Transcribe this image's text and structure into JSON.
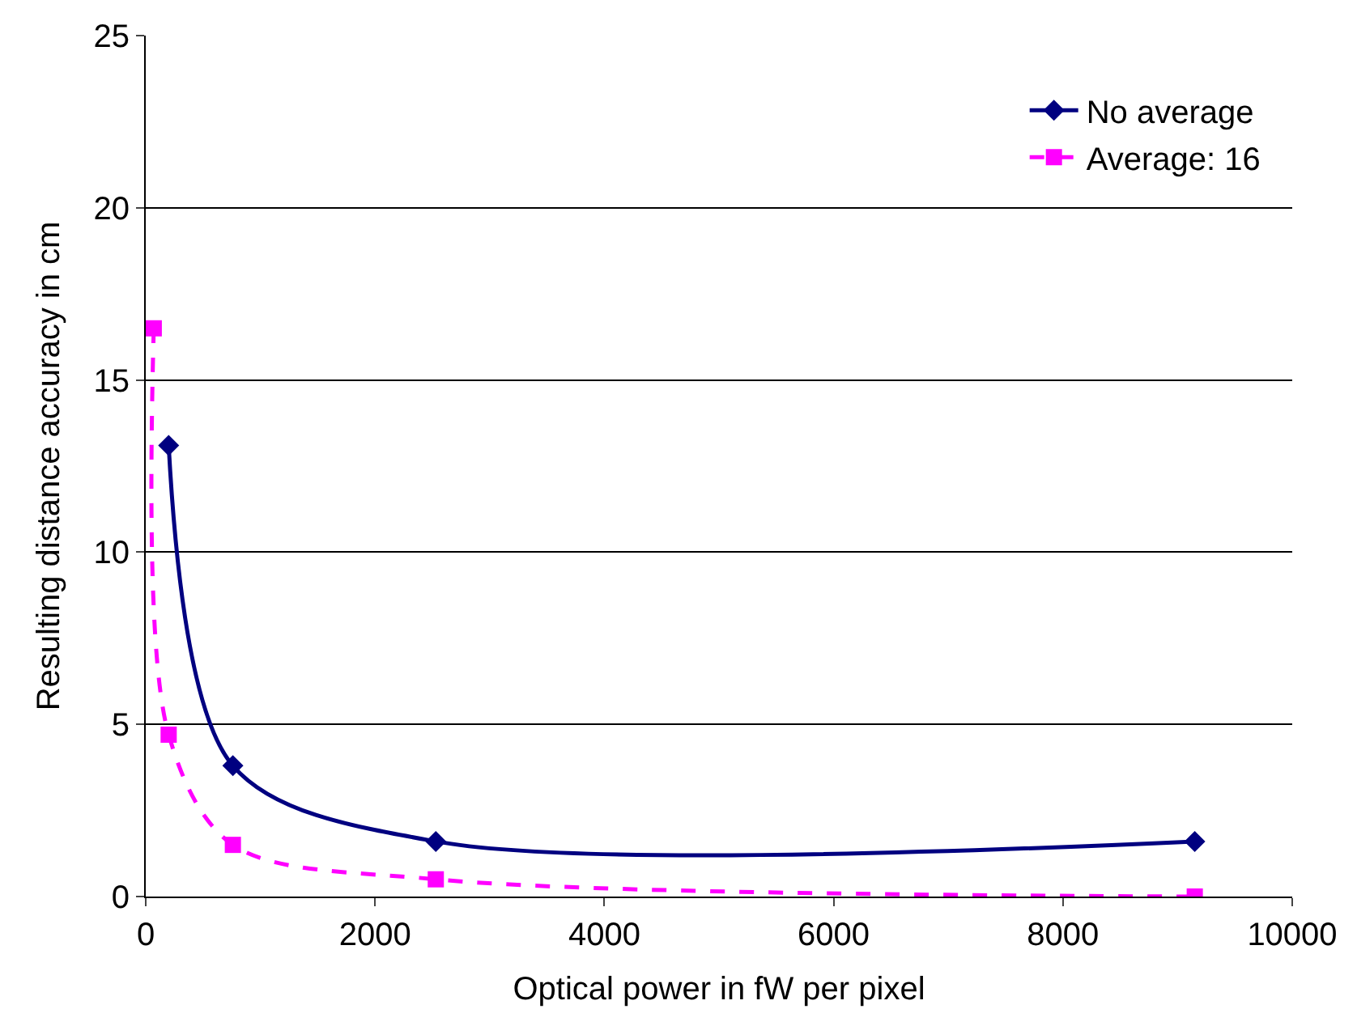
{
  "chart_data": {
    "type": "line",
    "xlabel": "Optical power in fW per pixel",
    "ylabel": "Resulting distance accuracy in cm",
    "xlim": [
      0,
      10000
    ],
    "xticks": [
      0,
      2000,
      4000,
      6000,
      8000,
      10000
    ],
    "ylim": [
      0,
      25
    ],
    "yticks": [
      0,
      5,
      10,
      15,
      20,
      25
    ],
    "grid": "y",
    "legend": "top right",
    "series": [
      {
        "name": "No average",
        "color": "#000080",
        "marker": "diamond",
        "line_style": "solid",
        "x": [
          200,
          760,
          2530,
          9150
        ],
        "values": [
          13.1,
          3.8,
          1.6,
          1.6
        ]
      },
      {
        "name": "Average: 16",
        "color": "#ff00ff",
        "marker": "square",
        "line_style": "dashed",
        "x": [
          70,
          200,
          760,
          2530,
          9150
        ],
        "values": [
          16.5,
          4.7,
          1.5,
          0.5,
          0
        ]
      }
    ]
  }
}
